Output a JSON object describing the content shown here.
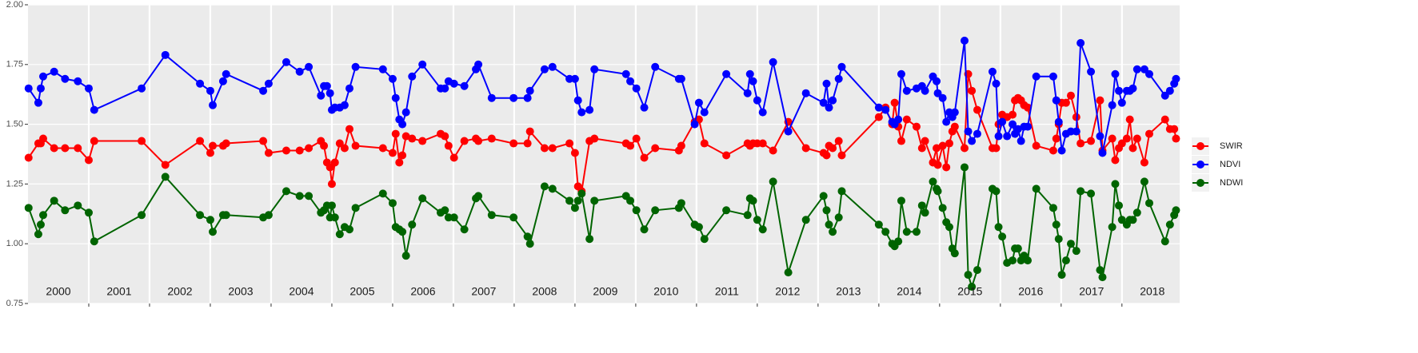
{
  "chart_data": {
    "type": "line",
    "x": [
      2000.01,
      2000.17,
      2000.21,
      2000.25,
      2000.43,
      2000.61,
      2000.82,
      2001.0,
      2001.09,
      2001.87,
      2002.26,
      2002.83,
      2003.0,
      2003.04,
      2003.21,
      2003.26,
      2003.87,
      2003.96,
      2004.25,
      2004.47,
      2004.62,
      2004.82,
      2004.87,
      2004.92,
      2004.97,
      2005.0,
      2005.05,
      2005.13,
      2005.21,
      2005.29,
      2005.39,
      2005.84,
      2006.0,
      2006.05,
      2006.11,
      2006.16,
      2006.22,
      2006.32,
      2006.49,
      2006.79,
      2006.86,
      2006.92,
      2007.01,
      2007.18,
      2007.37,
      2007.41,
      2007.63,
      2007.99,
      2008.22,
      2008.26,
      2008.5,
      2008.63,
      2008.91,
      2009.0,
      2009.05,
      2009.11,
      2009.24,
      2009.32,
      2009.84,
      2009.91,
      2010.01,
      2010.14,
      2010.32,
      2010.71,
      2010.75,
      2010.97,
      2011.04,
      2011.13,
      2011.49,
      2011.84,
      2011.88,
      2011.93,
      2012.0,
      2012.09,
      2012.26,
      2012.51,
      2012.8,
      2013.09,
      2013.14,
      2013.18,
      2013.24,
      2013.34,
      2013.39,
      2014.0,
      2014.11,
      2014.22,
      2014.26,
      2014.32,
      2014.37,
      2014.46,
      2014.62,
      2014.71,
      2014.76,
      2014.89,
      2014.95,
      2014.97,
      2015.05,
      2015.11,
      2015.16,
      2015.21,
      2015.25,
      2015.41,
      2015.47,
      2015.53,
      2015.62,
      2015.87,
      2015.93,
      2015.97,
      2016.03,
      2016.11,
      2016.2,
      2016.24,
      2016.29,
      2016.34,
      2016.39,
      2016.45,
      2016.59,
      2016.87,
      2016.92,
      2016.96,
      2017.01,
      2017.08,
      2017.16,
      2017.25,
      2017.32,
      2017.49,
      2017.64,
      2017.68,
      2017.84,
      2017.89,
      2017.95,
      2018.0,
      2018.08,
      2018.13,
      2018.18,
      2018.25,
      2018.37,
      2018.45,
      2018.71,
      2018.79,
      2018.86,
      2018.89
    ],
    "series": [
      {
        "name": "SWIR",
        "color": "#ff0000",
        "values": [
          1.36,
          1.42,
          1.42,
          1.44,
          1.4,
          1.4,
          1.4,
          1.35,
          1.43,
          1.43,
          1.33,
          1.43,
          1.38,
          1.41,
          1.41,
          1.42,
          1.43,
          1.38,
          1.39,
          1.39,
          1.4,
          1.43,
          1.41,
          1.34,
          1.32,
          1.25,
          1.34,
          1.42,
          1.4,
          1.48,
          1.41,
          1.4,
          1.38,
          1.46,
          1.34,
          1.37,
          1.45,
          1.44,
          1.43,
          1.46,
          1.45,
          1.41,
          1.36,
          1.43,
          1.44,
          1.43,
          1.44,
          1.42,
          1.42,
          1.47,
          1.4,
          1.4,
          1.42,
          1.38,
          1.24,
          1.22,
          1.43,
          1.44,
          1.42,
          1.41,
          1.44,
          1.36,
          1.4,
          1.39,
          1.41,
          1.51,
          1.52,
          1.42,
          1.37,
          1.42,
          1.41,
          1.42,
          1.42,
          1.42,
          1.39,
          1.51,
          1.4,
          1.38,
          1.37,
          1.41,
          1.4,
          1.43,
          1.37,
          1.53,
          1.57,
          1.5,
          1.59,
          1.49,
          1.43,
          1.52,
          1.49,
          1.4,
          1.43,
          1.34,
          1.4,
          1.33,
          1.41,
          1.32,
          1.42,
          1.47,
          1.49,
          1.4,
          1.71,
          1.64,
          1.56,
          1.4,
          1.4,
          1.5,
          1.54,
          1.53,
          1.54,
          1.6,
          1.61,
          1.6,
          1.58,
          1.57,
          1.41,
          1.39,
          1.44,
          1.5,
          1.59,
          1.59,
          1.62,
          1.53,
          1.42,
          1.43,
          1.6,
          1.39,
          1.44,
          1.35,
          1.4,
          1.42,
          1.44,
          1.52,
          1.4,
          1.44,
          1.34,
          1.46,
          1.52,
          1.48,
          1.48,
          1.44
        ]
      },
      {
        "name": "NDVI",
        "color": "#0000ff",
        "values": [
          1.65,
          1.59,
          1.65,
          1.7,
          1.72,
          1.69,
          1.68,
          1.65,
          1.56,
          1.65,
          1.79,
          1.67,
          1.64,
          1.58,
          1.68,
          1.71,
          1.64,
          1.67,
          1.76,
          1.72,
          1.74,
          1.62,
          1.66,
          1.66,
          1.63,
          1.56,
          1.57,
          1.57,
          1.58,
          1.65,
          1.74,
          1.73,
          1.69,
          1.61,
          1.52,
          1.5,
          1.55,
          1.7,
          1.75,
          1.65,
          1.65,
          1.68,
          1.67,
          1.66,
          1.73,
          1.75,
          1.61,
          1.61,
          1.61,
          1.64,
          1.73,
          1.74,
          1.69,
          1.69,
          1.6,
          1.55,
          1.56,
          1.73,
          1.71,
          1.68,
          1.65,
          1.57,
          1.74,
          1.69,
          1.69,
          1.5,
          1.59,
          1.55,
          1.71,
          1.63,
          1.71,
          1.68,
          1.6,
          1.55,
          1.76,
          1.47,
          1.63,
          1.59,
          1.67,
          1.57,
          1.6,
          1.69,
          1.74,
          1.57,
          1.56,
          1.51,
          1.5,
          1.52,
          1.71,
          1.64,
          1.65,
          1.66,
          1.64,
          1.7,
          1.68,
          1.63,
          1.61,
          1.51,
          1.55,
          1.53,
          1.55,
          1.85,
          1.47,
          1.43,
          1.46,
          1.72,
          1.67,
          1.45,
          1.51,
          1.45,
          1.5,
          1.46,
          1.48,
          1.43,
          1.49,
          1.49,
          1.7,
          1.7,
          1.6,
          1.51,
          1.39,
          1.46,
          1.47,
          1.47,
          1.84,
          1.72,
          1.45,
          1.38,
          1.58,
          1.71,
          1.64,
          1.59,
          1.64,
          1.64,
          1.65,
          1.73,
          1.73,
          1.71,
          1.62,
          1.64,
          1.67,
          1.69
        ]
      },
      {
        "name": "NDWI",
        "color": "#006400",
        "values": [
          1.15,
          1.04,
          1.08,
          1.12,
          1.18,
          1.14,
          1.16,
          1.13,
          1.01,
          1.12,
          1.28,
          1.12,
          1.1,
          1.05,
          1.12,
          1.12,
          1.11,
          1.12,
          1.22,
          1.2,
          1.2,
          1.13,
          1.14,
          1.16,
          1.11,
          1.16,
          1.11,
          1.04,
          1.07,
          1.06,
          1.15,
          1.21,
          1.17,
          1.07,
          1.06,
          1.05,
          0.95,
          1.08,
          1.19,
          1.13,
          1.14,
          1.11,
          1.11,
          1.06,
          1.19,
          1.2,
          1.12,
          1.11,
          1.03,
          1.0,
          1.24,
          1.23,
          1.18,
          1.15,
          1.18,
          1.21,
          1.02,
          1.18,
          1.2,
          1.18,
          1.14,
          1.06,
          1.14,
          1.15,
          1.17,
          1.08,
          1.07,
          1.02,
          1.14,
          1.12,
          1.19,
          1.18,
          1.1,
          1.06,
          1.26,
          0.88,
          1.1,
          1.2,
          1.14,
          1.08,
          1.05,
          1.11,
          1.22,
          1.08,
          1.05,
          1.0,
          0.99,
          1.01,
          1.18,
          1.05,
          1.05,
          1.16,
          1.13,
          1.26,
          1.23,
          1.22,
          1.15,
          1.09,
          1.07,
          0.98,
          0.96,
          1.32,
          0.87,
          0.82,
          0.89,
          1.23,
          1.22,
          1.07,
          1.03,
          0.92,
          0.93,
          0.98,
          0.98,
          0.93,
          0.95,
          0.93,
          1.23,
          1.15,
          1.08,
          1.02,
          0.87,
          0.93,
          1.0,
          0.97,
          1.22,
          1.21,
          0.89,
          0.86,
          1.07,
          1.25,
          1.16,
          1.1,
          1.08,
          1.1,
          1.1,
          1.13,
          1.26,
          1.17,
          1.01,
          1.08,
          1.12,
          1.14
        ]
      }
    ],
    "xlim": [
      2000,
      2018.95
    ],
    "xticks": [
      {
        "value": 2000.5,
        "label": "2000"
      },
      {
        "value": 2001.5,
        "label": "2001"
      },
      {
        "value": 2002.5,
        "label": "2002"
      },
      {
        "value": 2003.5,
        "label": "2003"
      },
      {
        "value": 2004.5,
        "label": "2004"
      },
      {
        "value": 2005.5,
        "label": "2005"
      },
      {
        "value": 2006.5,
        "label": "2006"
      },
      {
        "value": 2007.5,
        "label": "2007"
      },
      {
        "value": 2008.5,
        "label": "2008"
      },
      {
        "value": 2009.5,
        "label": "2009"
      },
      {
        "value": 2010.5,
        "label": "2010"
      },
      {
        "value": 2011.5,
        "label": "2011"
      },
      {
        "value": 2012.5,
        "label": "2012"
      },
      {
        "value": 2013.5,
        "label": "2013"
      },
      {
        "value": 2014.5,
        "label": "2014"
      },
      {
        "value": 2015.5,
        "label": "2015"
      },
      {
        "value": 2016.5,
        "label": "2016"
      },
      {
        "value": 2017.5,
        "label": "2017"
      },
      {
        "value": 2018.5,
        "label": "2018"
      }
    ],
    "xgrid": [
      2001,
      2002,
      2003,
      2004,
      2005,
      2006,
      2007,
      2008,
      2009,
      2010,
      2011,
      2012,
      2013,
      2014,
      2015,
      2016,
      2017,
      2018
    ],
    "ylim": [
      0.75,
      2.0
    ],
    "yticks": [
      {
        "value": 0.75,
        "label": "0.75"
      },
      {
        "value": 1.0,
        "label": "1.00"
      },
      {
        "value": 1.25,
        "label": "1.25"
      },
      {
        "value": 1.5,
        "label": "1.50"
      },
      {
        "value": 1.75,
        "label": "1.75"
      },
      {
        "value": 2.0,
        "label": "2.00"
      }
    ],
    "grid": true,
    "legend": "right"
  }
}
